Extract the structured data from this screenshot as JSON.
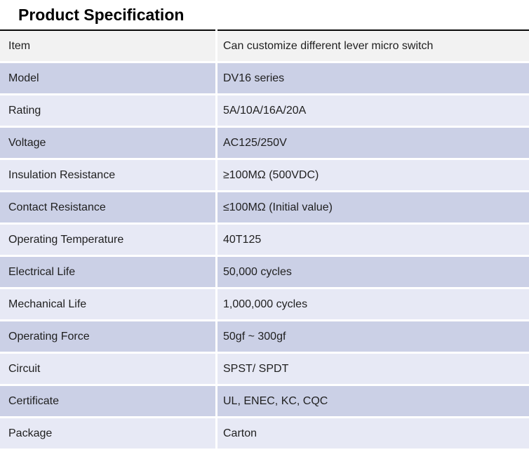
{
  "title": "Product Specification",
  "colors": {
    "header_row_bg": "#f2f2f2",
    "row_dark_bg": "#cbd0e6",
    "row_light_bg": "#e7e9f5",
    "top_border": "#0a0a0a",
    "text": "#1f1f1f"
  },
  "table": {
    "rows": [
      {
        "label": "Item",
        "value": "Can customize different lever micro switch",
        "shade": "gray"
      },
      {
        "label": "Model",
        "value": "DV16 series",
        "shade": "dark"
      },
      {
        "label": "Rating",
        "value": "5A/10A/16A/20A",
        "shade": "light"
      },
      {
        "label": "Voltage",
        "value": "AC125/250V",
        "shade": "dark"
      },
      {
        "label": "Insulation Resistance",
        "value": "≥100MΩ (500VDC)",
        "shade": "light"
      },
      {
        "label": "Contact Resistance",
        "value": "≤100MΩ (Initial value)",
        "shade": "dark"
      },
      {
        "label": "Operating Temperature",
        "value": "40T125",
        "shade": "light"
      },
      {
        "label": "Electrical Life",
        "value": "50,000 cycles",
        "shade": "dark"
      },
      {
        "label": "Mechanical Life",
        "value": "1,000,000 cycles",
        "shade": "light"
      },
      {
        "label": "Operating Force",
        "value": "50gf ~ 300gf",
        "shade": "dark"
      },
      {
        "label": "Circuit",
        "value": "SPST/ SPDT",
        "shade": "light"
      },
      {
        "label": "Certificate",
        "value": "UL, ENEC, KC, CQC",
        "shade": "dark"
      },
      {
        "label": "Package",
        "value": "Carton",
        "shade": "light"
      }
    ]
  }
}
